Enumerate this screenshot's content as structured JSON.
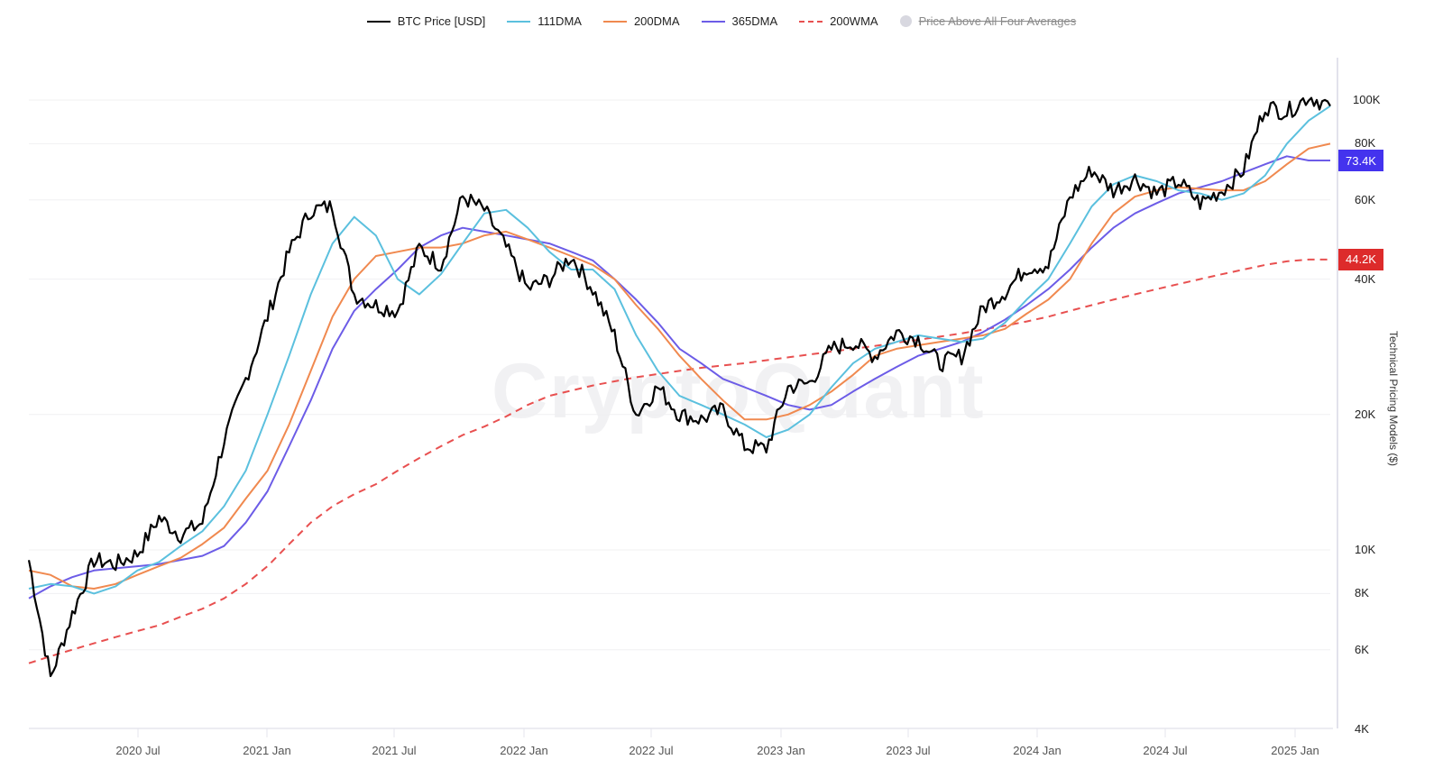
{
  "legend": [
    {
      "label": "BTC Price [USD]",
      "color": "#000000",
      "style": "solid",
      "active": true
    },
    {
      "label": "111DMA",
      "color": "#5bc0de",
      "style": "solid",
      "active": true
    },
    {
      "label": "200DMA",
      "color": "#f0894f",
      "style": "solid",
      "active": true
    },
    {
      "label": "365DMA",
      "color": "#6c5ce7",
      "style": "solid",
      "active": true
    },
    {
      "label": "200WMA",
      "color": "#e85050",
      "style": "dashed",
      "active": true
    },
    {
      "label": "Price Above All Four Averages",
      "color": "#d8d8e0",
      "style": "dot",
      "active": false
    }
  ],
  "watermark": "CryptoQuant",
  "y_axis": {
    "title": "Technical Pricing Models ($)",
    "ticks": [
      {
        "label": "100K",
        "value": 100000
      },
      {
        "label": "80K",
        "value": 80000
      },
      {
        "label": "60K",
        "value": 60000
      },
      {
        "label": "40K",
        "value": 40000
      },
      {
        "label": "20K",
        "value": 20000
      },
      {
        "label": "10K",
        "value": 10000
      },
      {
        "label": "8K",
        "value": 8000
      },
      {
        "label": "6K",
        "value": 6000
      },
      {
        "label": "4K",
        "value": 4000
      }
    ]
  },
  "badges": [
    {
      "label": "73.4K",
      "value": 73400,
      "color": "#4433ee"
    },
    {
      "label": "44.2K",
      "value": 44200,
      "color": "#dd2b2b"
    }
  ],
  "x_axis": {
    "ticks": [
      "2020 Jul",
      "2021 Jan",
      "2021 Jul",
      "2022 Jan",
      "2022 Jul",
      "2023 Jan",
      "2023 Jul",
      "2024 Jan",
      "2024 Jul",
      "2025 Jan"
    ]
  },
  "chart_data": {
    "type": "line",
    "title": "",
    "xlabel": "",
    "ylabel": "Technical Pricing Models ($)",
    "yscale": "log",
    "ylim": [
      4000,
      120000
    ],
    "xlim": [
      "2020-02",
      "2025-02"
    ],
    "legend_position": "top",
    "grid": true,
    "x": [
      "2020-02",
      "2020-03",
      "2020-04",
      "2020-05",
      "2020-06",
      "2020-07",
      "2020-08",
      "2020-09",
      "2020-10",
      "2020-11",
      "2020-12",
      "2021-01",
      "2021-02",
      "2021-03",
      "2021-04",
      "2021-05",
      "2021-06",
      "2021-07",
      "2021-08",
      "2021-09",
      "2021-10",
      "2021-11",
      "2021-12",
      "2022-01",
      "2022-02",
      "2022-03",
      "2022-04",
      "2022-05",
      "2022-06",
      "2022-07",
      "2022-08",
      "2022-09",
      "2022-10",
      "2022-11",
      "2022-12",
      "2023-01",
      "2023-02",
      "2023-03",
      "2023-04",
      "2023-05",
      "2023-06",
      "2023-07",
      "2023-08",
      "2023-09",
      "2023-10",
      "2023-11",
      "2023-12",
      "2024-01",
      "2024-02",
      "2024-03",
      "2024-04",
      "2024-05",
      "2024-06",
      "2024-07",
      "2024-08",
      "2024-09",
      "2024-10",
      "2024-11",
      "2024-12",
      "2025-01",
      "2025-02"
    ],
    "series": [
      {
        "name": "BTC Price [USD]",
        "values": [
          9500,
          5200,
          7200,
          9500,
          9300,
          9800,
          11800,
          10800,
          11500,
          17500,
          24000,
          33000,
          46000,
          57000,
          58000,
          37000,
          35000,
          34000,
          47000,
          43000,
          61000,
          57000,
          47000,
          38000,
          40000,
          45000,
          38000,
          30000,
          20000,
          23000,
          20000,
          19500,
          20500,
          17000,
          16800,
          23000,
          23500,
          28000,
          29000,
          27000,
          30500,
          29500,
          26000,
          27000,
          34500,
          37500,
          42500,
          43000,
          61000,
          70000,
          63000,
          67000,
          62000,
          66000,
          59000,
          63000,
          70000,
          97000,
          94000,
          102000,
          97000
        ]
      },
      {
        "name": "111DMA",
        "values": [
          8200,
          8400,
          8300,
          8000,
          8300,
          9000,
          9400,
          10200,
          11000,
          12500,
          15000,
          20000,
          27000,
          37000,
          48000,
          55000,
          50000,
          40000,
          37000,
          41000,
          48000,
          56000,
          57000,
          52000,
          46000,
          42000,
          42000,
          38000,
          30000,
          25000,
          22000,
          21000,
          20000,
          19000,
          17800,
          18500,
          20000,
          23000,
          26000,
          28000,
          29000,
          30000,
          29500,
          29000,
          29500,
          32000,
          36000,
          40000,
          48000,
          58000,
          65000,
          68000,
          66000,
          63000,
          62000,
          60000,
          62000,
          68000,
          80000,
          90000,
          97000
        ]
      },
      {
        "name": "200DMA",
        "values": [
          9000,
          8800,
          8300,
          8200,
          8400,
          8800,
          9200,
          9600,
          10300,
          11200,
          13000,
          15000,
          19000,
          25000,
          33000,
          40000,
          45000,
          46000,
          47000,
          47000,
          48000,
          50000,
          51000,
          49000,
          47000,
          45000,
          43000,
          40000,
          35000,
          31000,
          27000,
          24000,
          21500,
          19500,
          19500,
          20000,
          21000,
          22500,
          24500,
          27000,
          28000,
          28500,
          29000,
          29500,
          30000,
          31000,
          33500,
          36000,
          40000,
          48000,
          56000,
          61000,
          63000,
          64000,
          63500,
          63000,
          63000,
          66000,
          72000,
          78000,
          80000
        ]
      },
      {
        "name": "365DMA",
        "values": [
          7800,
          8300,
          8700,
          9000,
          9100,
          9200,
          9300,
          9500,
          9700,
          10200,
          11500,
          13500,
          17000,
          21500,
          28000,
          34000,
          38000,
          42000,
          47000,
          50000,
          52000,
          51000,
          50000,
          49000,
          48000,
          46000,
          44000,
          40000,
          36000,
          32000,
          28000,
          26000,
          24000,
          23000,
          22000,
          21000,
          20500,
          21000,
          22500,
          24000,
          25500,
          27000,
          28000,
          29000,
          30500,
          32500,
          35000,
          38000,
          42000,
          47000,
          52000,
          56000,
          59000,
          62000,
          64000,
          66000,
          69000,
          72000,
          75000,
          73400,
          73400
        ]
      },
      {
        "name": "200WMA",
        "values": [
          5600,
          5800,
          6000,
          6200,
          6400,
          6600,
          6800,
          7100,
          7400,
          7800,
          8400,
          9200,
          10300,
          11500,
          12500,
          13300,
          14000,
          15000,
          16000,
          17000,
          18000,
          18800,
          19800,
          21000,
          22000,
          22600,
          23200,
          23700,
          24200,
          24600,
          25000,
          25400,
          25700,
          26000,
          26400,
          26800,
          27200,
          27600,
          28000,
          28400,
          28900,
          29300,
          29800,
          30300,
          30900,
          31500,
          32200,
          33000,
          34000,
          35000,
          36000,
          37000,
          38000,
          39000,
          40000,
          41000,
          42000,
          43000,
          43800,
          44200,
          44200
        ]
      }
    ]
  }
}
